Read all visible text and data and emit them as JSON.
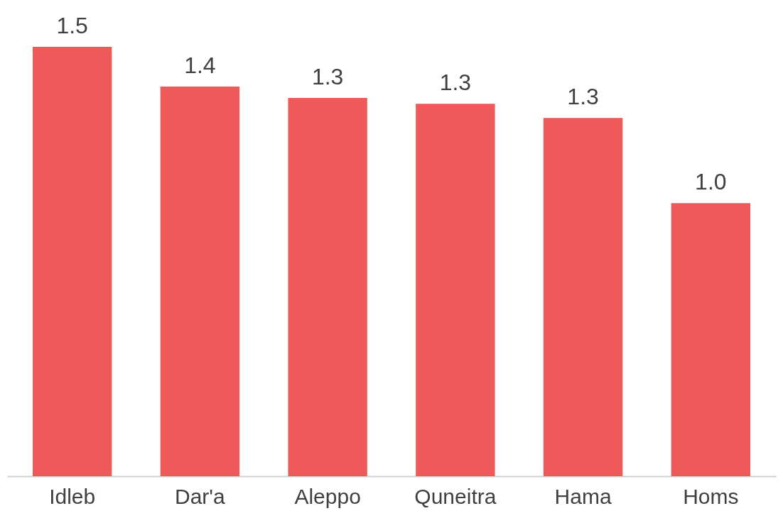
{
  "chart_data": {
    "type": "bar",
    "categories": [
      "Idleb",
      "Dar'a",
      "Aleppo",
      "Quneitra",
      "Hama",
      "Homs"
    ],
    "values": [
      1.51,
      1.37,
      1.33,
      1.31,
      1.26,
      0.96
    ],
    "value_labels": [
      "1.5",
      "1.4",
      "1.3",
      "1.3",
      "1.3",
      "1.0"
    ],
    "color": "#ee5a5a",
    "grid": false
  }
}
